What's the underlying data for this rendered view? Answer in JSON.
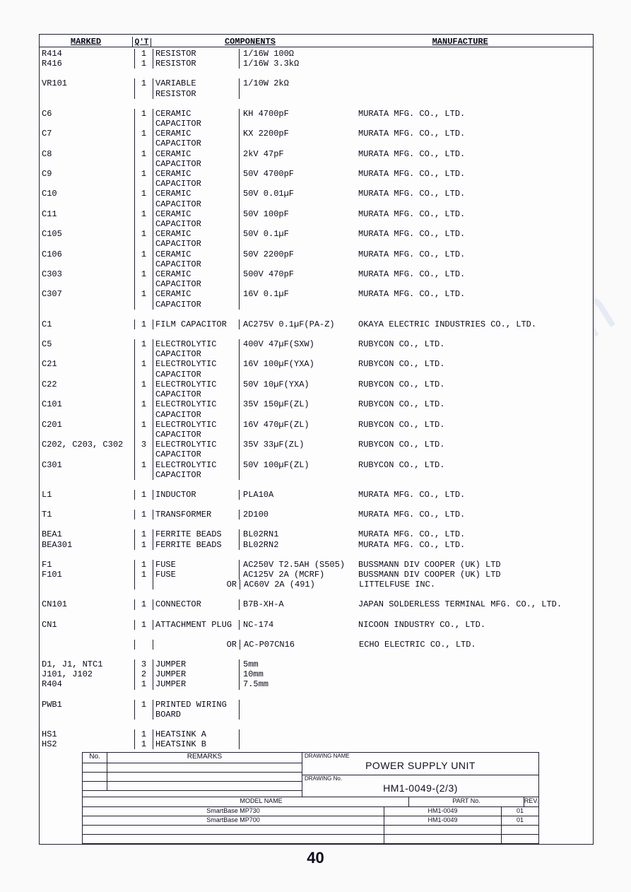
{
  "headers": {
    "marked": "MARKED",
    "qt": "Q'T",
    "components": "COMPONENTS",
    "manufacture": "MANUFACTURE"
  },
  "rows": [
    {
      "m": "R414",
      "q": "1",
      "t": "RESISTOR",
      "s": "1/16W 100Ω",
      "mf": ""
    },
    {
      "m": "R416",
      "q": "1",
      "t": "RESISTOR",
      "s": "1/16W 3.3kΩ",
      "mf": ""
    },
    {
      "gap": true
    },
    {
      "m": "VR101",
      "q": "1",
      "t": "VARIABLE",
      "s": "1/10W 2kΩ",
      "mf": ""
    },
    {
      "m": "",
      "q": "",
      "t": "RESISTOR",
      "s": "",
      "mf": ""
    },
    {
      "gap": true
    },
    {
      "m": "C6",
      "q": "1",
      "t": "CERAMIC",
      "s": "KH 4700pF",
      "mf": "MURATA MFG. CO., LTD."
    },
    {
      "m": "",
      "q": "",
      "t": "CAPACITOR",
      "s": "",
      "mf": ""
    },
    {
      "m": "C7",
      "q": "1",
      "t": "CERAMIC",
      "s": "KX  2200pF",
      "mf": "MURATA MFG. CO., LTD."
    },
    {
      "m": "",
      "q": "",
      "t": "CAPACITOR",
      "s": "",
      "mf": ""
    },
    {
      "m": "C8",
      "q": "1",
      "t": "CERAMIC",
      "s": "2kV 47pF",
      "mf": "MURATA MFG. CO., LTD."
    },
    {
      "m": "",
      "q": "",
      "t": "CAPACITOR",
      "s": "",
      "mf": ""
    },
    {
      "m": "C9",
      "q": "1",
      "t": "CERAMIC",
      "s": "50V 4700pF",
      "mf": "MURATA MFG. CO., LTD."
    },
    {
      "m": "",
      "q": "",
      "t": "CAPACITOR",
      "s": "",
      "mf": ""
    },
    {
      "m": "C10",
      "q": "1",
      "t": "CERAMIC",
      "s": "50V 0.01µF",
      "mf": "MURATA MFG. CO., LTD."
    },
    {
      "m": "",
      "q": "",
      "t": "CAPACITOR",
      "s": "",
      "mf": ""
    },
    {
      "m": "C11",
      "q": "1",
      "t": "CERAMIC",
      "s": "50V 100pF",
      "mf": "MURATA MFG. CO., LTD."
    },
    {
      "m": "",
      "q": "",
      "t": "CAPACITOR",
      "s": "",
      "mf": ""
    },
    {
      "m": "C105",
      "q": "1",
      "t": "CERAMIC",
      "s": "50V 0.1µF",
      "mf": "MURATA MFG. CO., LTD."
    },
    {
      "m": "",
      "q": "",
      "t": "CAPACITOR",
      "s": "",
      "mf": ""
    },
    {
      "m": "C106",
      "q": "1",
      "t": "CERAMIC",
      "s": "50V 2200pF",
      "mf": "MURATA MFG. CO., LTD."
    },
    {
      "m": "",
      "q": "",
      "t": "CAPACITOR",
      "s": "",
      "mf": ""
    },
    {
      "m": "C303",
      "q": "1",
      "t": "CERAMIC",
      "s": "500V 470pF",
      "mf": "MURATA MFG. CO., LTD."
    },
    {
      "m": "",
      "q": "",
      "t": "CAPACITOR",
      "s": "",
      "mf": ""
    },
    {
      "m": "C307",
      "q": "1",
      "t": "CERAMIC",
      "s": "16V 0.1µF",
      "mf": "MURATA MFG. CO., LTD."
    },
    {
      "m": "",
      "q": "",
      "t": "CAPACITOR",
      "s": "",
      "mf": ""
    },
    {
      "gap": true
    },
    {
      "m": "C1",
      "q": "1",
      "t": "FILM CAPACITOR",
      "s": "AC275V 0.1µF(PA-Z)",
      "mf": "OKAYA ELECTRIC INDUSTRIES CO., LTD."
    },
    {
      "gap": true
    },
    {
      "m": "C5",
      "q": "1",
      "t": "ELECTROLYTIC",
      "s": "400V 47µF(SXW)",
      "mf": "RUBYCON CO., LTD."
    },
    {
      "m": "",
      "q": "",
      "t": "CAPACITOR",
      "s": "",
      "mf": ""
    },
    {
      "m": "C21",
      "q": "1",
      "t": "ELECTROLYTIC",
      "s": "16V 100µF(YXA)",
      "mf": "RUBYCON CO., LTD."
    },
    {
      "m": "",
      "q": "",
      "t": "CAPACITOR",
      "s": "",
      "mf": ""
    },
    {
      "m": "C22",
      "q": "1",
      "t": "ELECTROLYTIC",
      "s": "50V 10µF(YXA)",
      "mf": "RUBYCON CO., LTD."
    },
    {
      "m": "",
      "q": "",
      "t": "CAPACITOR",
      "s": "",
      "mf": ""
    },
    {
      "m": "C101",
      "q": "1",
      "t": "ELECTROLYTIC",
      "s": "35V 150µF(ZL)",
      "mf": "RUBYCON CO., LTD."
    },
    {
      "m": "",
      "q": "",
      "t": "CAPACITOR",
      "s": "",
      "mf": ""
    },
    {
      "m": "C201",
      "q": "1",
      "t": "ELECTROLYTIC",
      "s": "16V 470µF(ZL)",
      "mf": "RUBYCON CO., LTD."
    },
    {
      "m": "",
      "q": "",
      "t": "CAPACITOR",
      "s": "",
      "mf": ""
    },
    {
      "m": "C202, C203, C302",
      "q": "3",
      "t": "ELECTROLYTIC",
      "s": "35V 33µF(ZL)",
      "mf": "RUBYCON CO., LTD."
    },
    {
      "m": "",
      "q": "",
      "t": "CAPACITOR",
      "s": "",
      "mf": ""
    },
    {
      "m": "C301",
      "q": "1",
      "t": "ELECTROLYTIC",
      "s": "50V 100µF(ZL)",
      "mf": "RUBYCON CO., LTD."
    },
    {
      "m": "",
      "q": "",
      "t": "CAPACITOR",
      "s": "",
      "mf": ""
    },
    {
      "gap": true
    },
    {
      "m": "L1",
      "q": "1",
      "t": "INDUCTOR",
      "s": "PLA10A",
      "mf": "MURATA MFG. CO., LTD."
    },
    {
      "gap": true
    },
    {
      "m": "T1",
      "q": "1",
      "t": "TRANSFORMER",
      "s": "2D100",
      "mf": "MURATA MFG. CO., LTD."
    },
    {
      "gap": true
    },
    {
      "m": "BEA1",
      "q": "1",
      "t": "FERRITE BEADS",
      "s": "BL02RN1",
      "mf": "MURATA MFG. CO., LTD."
    },
    {
      "m": "BEA301",
      "q": "1",
      "t": "FERRITE BEADS",
      "s": "BL02RN2",
      "mf": "MURATA MFG. CO., LTD."
    },
    {
      "gap": true
    },
    {
      "m": "F1",
      "q": "1",
      "t": "FUSE",
      "s": "AC250V T2.5AH (S505)",
      "mf": "BUSSMANN DIV COOPER (UK) LTD"
    },
    {
      "m": "F101",
      "q": "1",
      "t": "FUSE",
      "s": "AC125V 2A (MCRF)",
      "mf": "BUSSMANN DIV COOPER (UK) LTD"
    },
    {
      "m": "",
      "q": "",
      "t": "",
      "or": "OR",
      "s": "AC60V 2A (491)",
      "mf": "LITTELFUSE INC."
    },
    {
      "gap": true
    },
    {
      "m": "CN101",
      "q": "1",
      "t": "CONNECTOR",
      "s": "B7B-XH-A",
      "mf": "JAPAN SOLDERLESS TERMINAL MFG. CO., LTD."
    },
    {
      "gap": true
    },
    {
      "m": "CN1",
      "q": "1",
      "t": "ATTACHMENT PLUG",
      "s": "NC-174",
      "mf": "NICOON INDUSTRY CO., LTD."
    },
    {
      "gap": true
    },
    {
      "m": "",
      "q": "",
      "t": "",
      "or": "OR",
      "s": "AC-P07CN16",
      "mf": "ECHO ELECTRIC CO., LTD."
    },
    {
      "gap": true
    },
    {
      "m": "D1, J1, NTC1",
      "q": "3",
      "t": "JUMPER",
      "s": "5mm",
      "mf": ""
    },
    {
      "m": "J101, J102",
      "q": "2",
      "t": "JUMPER",
      "s": "10mm",
      "mf": ""
    },
    {
      "m": "R404",
      "q": "1",
      "t": "JUMPER",
      "s": "7.5mm",
      "mf": ""
    },
    {
      "gap": true
    },
    {
      "m": "PWB1",
      "q": "1",
      "t": "PRINTED WIRING",
      "s": "",
      "mf": ""
    },
    {
      "m": "",
      "q": "",
      "t": "BOARD",
      "s": "",
      "mf": ""
    },
    {
      "gap": true
    },
    {
      "m": "HS1",
      "q": "1",
      "t": "HEATSINK A",
      "s": "",
      "mf": ""
    },
    {
      "m": "HS2",
      "q": "1",
      "t": "HEATSINK B",
      "s": "",
      "mf": ""
    }
  ],
  "footer": {
    "no": "No.",
    "remarks": "REMARKS",
    "drawing_name_label": "DRAWING NAME",
    "drawing_name": "POWER SUPPLY UNIT",
    "drawing_no_label": "DRAWING No.",
    "drawing_no": "HM1-0049-(2/3)",
    "model_name_h": "MODEL NAME",
    "part_no_h": "PART No.",
    "rev_h": "REV.",
    "models": [
      {
        "name": "SmartBase MP730",
        "part": "HM1-0049",
        "rev": "01"
      },
      {
        "name": "SmartBase MP700",
        "part": "HM1-0049",
        "rev": "01"
      }
    ]
  },
  "page": "40",
  "watermark": "manualshive.com"
}
